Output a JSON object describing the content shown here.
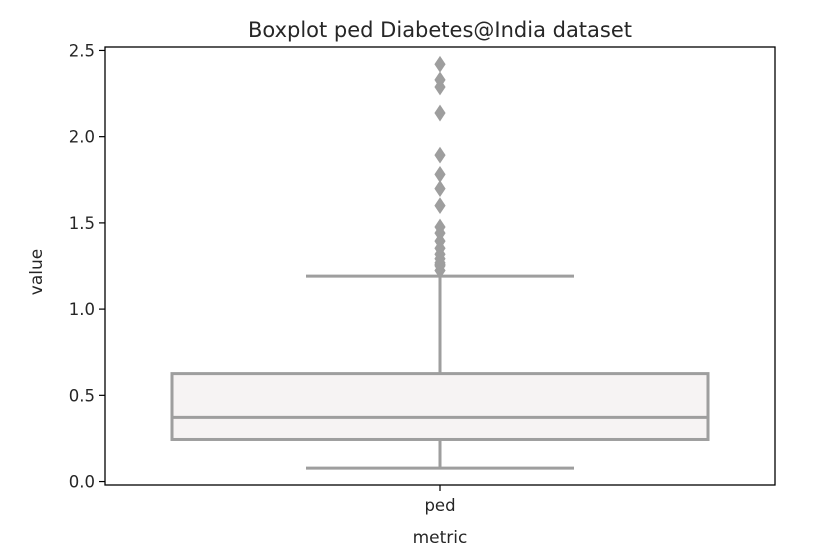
{
  "chart_data": {
    "type": "box",
    "title": "Boxplot ped Diabetes@India dataset",
    "xlabel": "metric",
    "ylabel": "value",
    "categories": [
      "ped"
    ],
    "ylim": [
      -0.02,
      2.52
    ],
    "yticks": [
      0.0,
      0.5,
      1.0,
      1.5,
      2.0,
      2.5
    ],
    "ytick_labels": [
      "0.0",
      "0.5",
      "1.0",
      "1.5",
      "2.0",
      "2.5"
    ],
    "boxes": [
      {
        "category": "ped",
        "whisker_low": 0.078,
        "q1": 0.244,
        "median": 0.3725,
        "q3": 0.626,
        "whisker_high": 1.191,
        "outliers": [
          1.224,
          1.251,
          1.258,
          1.268,
          1.292,
          1.318,
          1.353,
          1.394,
          1.441,
          1.476,
          1.6,
          1.699,
          1.781,
          1.893,
          2.137,
          2.288,
          2.329,
          2.42
        ]
      }
    ],
    "colors": {
      "box_fill": "#f6f3f3",
      "box_edge": "#9e9e9e",
      "flier": "#9e9e9e",
      "axes": "#000000"
    },
    "grid": false
  }
}
